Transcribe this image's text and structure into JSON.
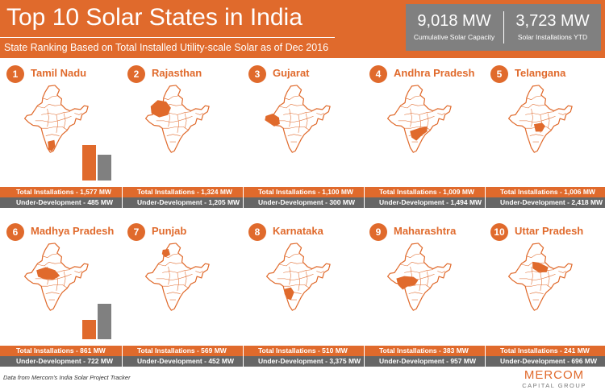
{
  "header": {
    "title": "Top 10 Solar States in India",
    "subtitle": "State Ranking Based on Total Installed Utility-scale Solar as of Dec 2016",
    "stats": [
      {
        "value": "9,018 MW",
        "label": "Cumulative Solar Capacity"
      },
      {
        "value": "3,723 MW",
        "label": "Solar Installations YTD"
      }
    ]
  },
  "colors": {
    "accent": "#e06a2c",
    "gray": "#808080",
    "dark_gray": "#666666"
  },
  "chart_data": {
    "type": "bar",
    "categories": [
      "Tamil Nadu",
      "Rajasthan",
      "Gujarat",
      "Andhra Pradesh",
      "Telangana",
      "Madhya Pradesh",
      "Punjab",
      "Karnataka",
      "Maharashtra",
      "Uttar Pradesh"
    ],
    "series": [
      {
        "key": "total",
        "values": [
          1577,
          1324,
          1100,
          1009,
          1006,
          861,
          569,
          510,
          383,
          241
        ]
      },
      {
        "key": "dev",
        "values": [
          485,
          1205,
          300,
          1494,
          2418,
          722,
          452,
          3375,
          957,
          696
        ]
      }
    ],
    "ranks": [
      "1",
      "2",
      "3",
      "4",
      "5",
      "6",
      "7",
      "8",
      "9",
      "10"
    ],
    "total_labels": [
      "Total Installations - 1,577 MW",
      "Total Installations - 1,324 MW",
      "Total Installations - 1,100 MW",
      "Total Installations - 1,009 MW",
      "Total Installations - 1,006 MW",
      "Total Installations - 861 MW",
      "Total Installations - 569 MW",
      "Total Installations - 510 MW",
      "Total Installations - 383 MW",
      "Total Installations - 241 MW"
    ],
    "dev_labels": [
      "Under-Development - 485 MW",
      "Under-Development - 1,205 MW",
      "Under-Development - 300 MW",
      "Under-Development - 1,494 MW",
      "Under-Development - 2,418 MW",
      "Under-Development - 722 MW",
      "Under-Development - 452 MW",
      "Under-Development - 3,375 MW",
      "Under-Development - 957 MW",
      "Under-Development - 696 MW"
    ],
    "highlight_icons": [
      "tamil-nadu-region-icon",
      "rajasthan-region-icon",
      "gujarat-region-icon",
      "andhra-pradesh-region-icon",
      "telangana-region-icon",
      "madhya-pradesh-region-icon",
      "punjab-region-icon",
      "karnataka-region-icon",
      "maharashtra-region-icon",
      "uttar-pradesh-region-icon"
    ],
    "legend": "none",
    "grid": false
  },
  "footer": {
    "source": "Data from Mercom's India Solar Project Tracker",
    "logo_main": "MERCOM",
    "logo_sub": "CAPITAL GROUP"
  }
}
